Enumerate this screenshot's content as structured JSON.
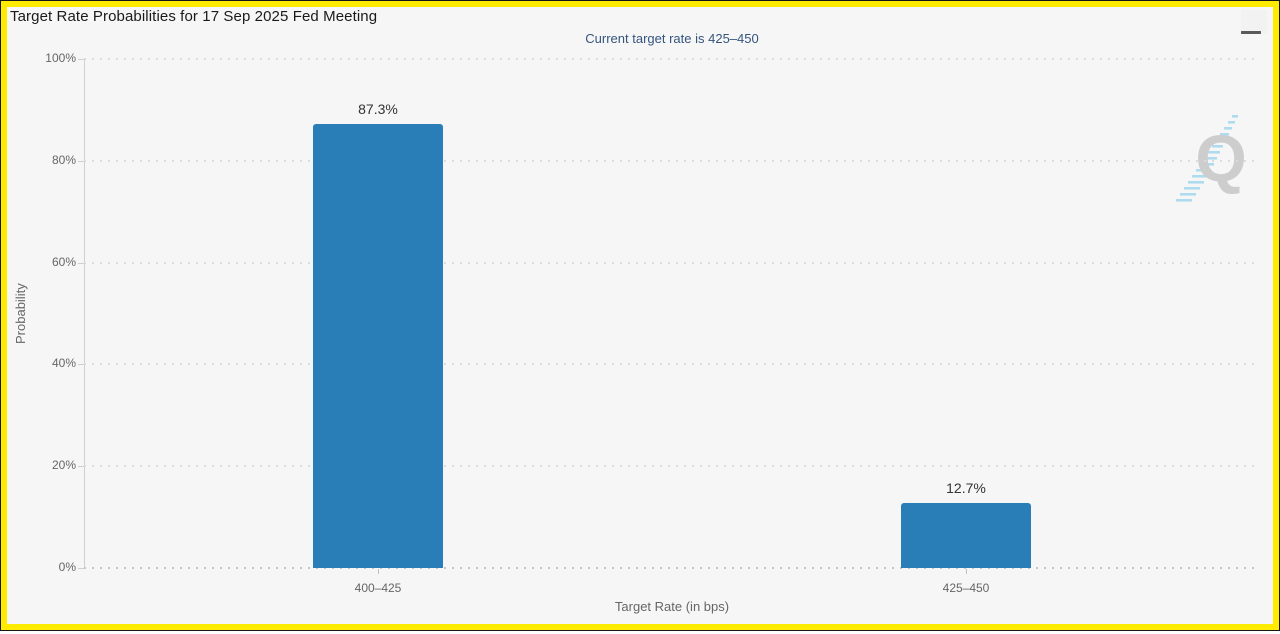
{
  "header": {
    "title": "Target Rate Probabilities for 17 Sep 2025 Fed Meeting",
    "subtitle": "Current target rate is 425–450",
    "menu_icon": "hamburger-icon"
  },
  "watermark": {
    "letter": "Q"
  },
  "colors": {
    "bar": "#2a7eb8",
    "frame_yellow": "#ffeb00",
    "subtitle_text": "#35557d",
    "background": "#f6f6f6",
    "axis_text": "#666666"
  },
  "chart_data": {
    "type": "bar",
    "title": "Target Rate Probabilities for 17 Sep 2025 Fed Meeting",
    "subtitle": "Current target rate is 425–450",
    "categories": [
      "400–425",
      "425–450"
    ],
    "values": [
      87.3,
      12.7
    ],
    "value_labels": [
      "87.3%",
      "12.7%"
    ],
    "xlabel": "Target Rate (in bps)",
    "ylabel": "Probability",
    "ylim": [
      0,
      100
    ],
    "ytick_labels": [
      "0%",
      "20%",
      "40%",
      "60%",
      "80%",
      "100%"
    ],
    "grid": "dotted-horizontal",
    "legend": "none",
    "bar_color": "#2a7eb8"
  }
}
